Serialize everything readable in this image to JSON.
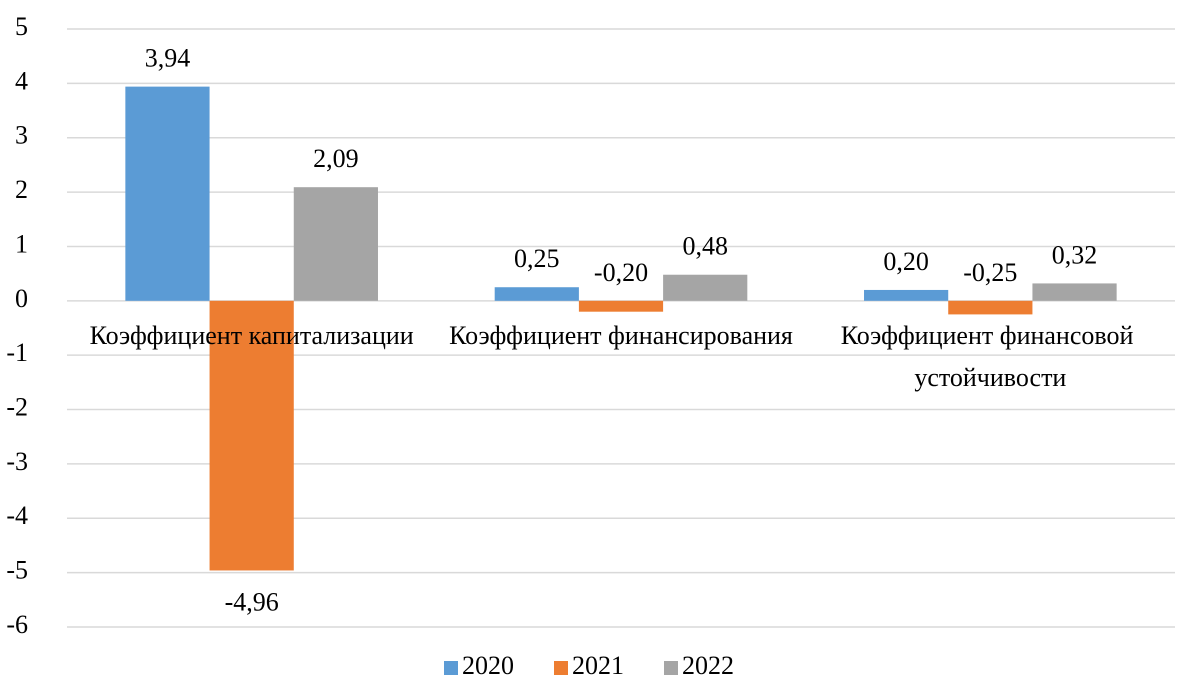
{
  "chart_data": {
    "type": "bar",
    "categories": [
      "Коэффициент капитализации",
      "Коэффициент финансирования",
      "Коэффициент финансовой устойчивости"
    ],
    "series": [
      {
        "name": "2020",
        "color": "#5b9bd5",
        "values": [
          3.94,
          0.25,
          0.2
        ],
        "value_labels": [
          "3,94",
          "0,25",
          "0,20"
        ]
      },
      {
        "name": "2021",
        "color": "#ed7d31",
        "values": [
          -4.96,
          -0.2,
          -0.25
        ],
        "value_labels": [
          "-4,96",
          "-0,20",
          "-0,25"
        ]
      },
      {
        "name": "2022",
        "color": "#a5a5a5",
        "values": [
          2.09,
          0.48,
          0.32
        ],
        "value_labels": [
          "2,09",
          "0,48",
          "0,32"
        ]
      }
    ],
    "ylim": [
      -6,
      5
    ],
    "yticks": [
      -6,
      -5,
      -4,
      -3,
      -2,
      -1,
      0,
      1,
      2,
      3,
      4,
      5
    ],
    "grid": true,
    "legend": "bottom"
  }
}
